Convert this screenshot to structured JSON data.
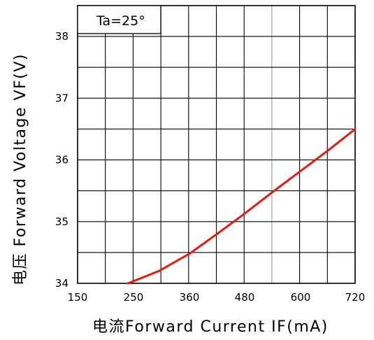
{
  "chart_data": {
    "type": "line",
    "annotation": "Ta=25°",
    "xlabel": "电流Forward Current IF(mA)",
    "ylabel": "电压 Forward Voltage VF(V)",
    "x_ticks": [
      150,
      250,
      360,
      480,
      600,
      720
    ],
    "y_ticks": [
      34,
      35,
      36,
      37,
      38
    ],
    "xlim": [
      150,
      720
    ],
    "ylim": [
      34,
      38.5
    ],
    "grid": true,
    "series": [
      {
        "color": "#e8190f",
        "x": [
          240,
          300,
          360,
          420,
          480,
          540,
          600,
          660,
          720
        ],
        "y": [
          34.0,
          34.2,
          34.48,
          34.8,
          35.13,
          35.48,
          35.82,
          36.15,
          36.5
        ]
      }
    ]
  }
}
